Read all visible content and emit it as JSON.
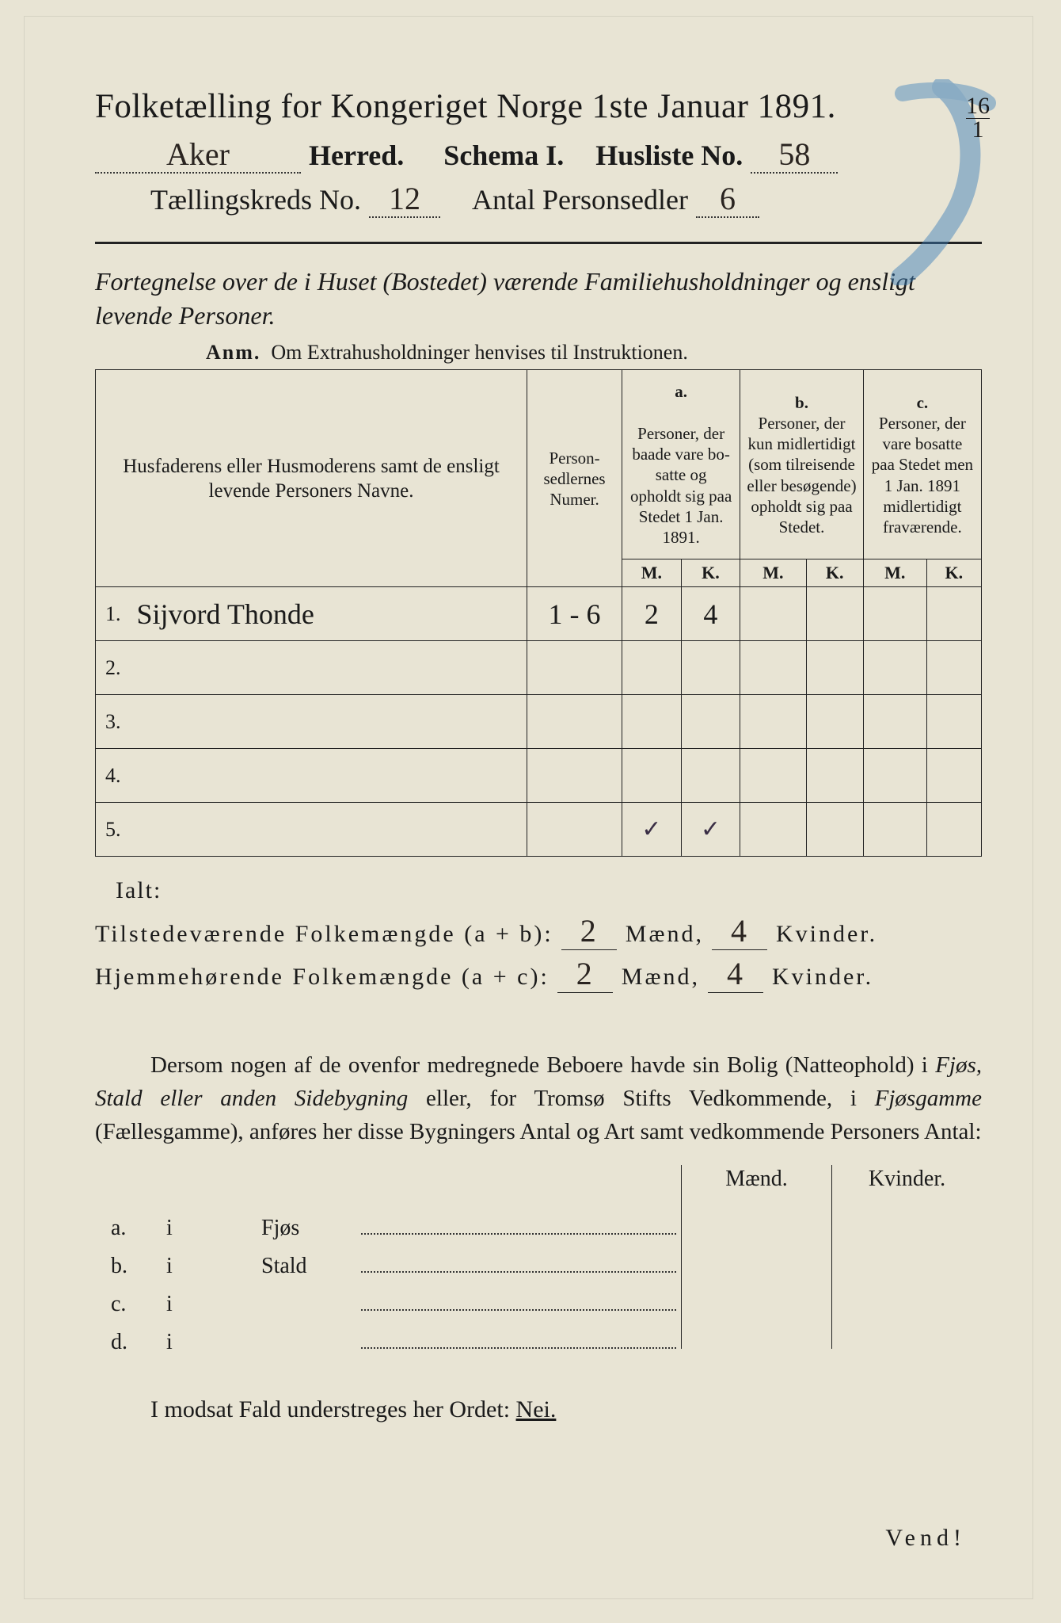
{
  "colors": {
    "paper": "#e8e4d4",
    "ink": "#1a1a1a",
    "blue_pencil": "#3a7db8",
    "handwriting": "#2a2420"
  },
  "header": {
    "title": "Folketælling for Kongeriget Norge 1ste Januar 1891.",
    "herred_hand": "Aker",
    "herred_label": "Herred.",
    "schema_label": "Schema I.",
    "husliste_label": "Husliste No.",
    "husliste_no_hand": "58",
    "corner_top": "16",
    "corner_bottom": "1",
    "kreds_label": "Tællingskreds No.",
    "kreds_no_hand": "12",
    "antal_label": "Antal Personsedler",
    "antal_hand": "6"
  },
  "intro": {
    "line": "Fortegnelse over de i Huset (Bostedet) værende Familiehusholdninger og ensligt levende Personer.",
    "anm_label": "Anm.",
    "anm_text": "Om Extrahusholdninger henvises til Instruktionen."
  },
  "table": {
    "col_names": "Husfaderens eller Husmode­rens samt de ensligt levende Personers Navne.",
    "col_numer": "Person­sedler­nes Numer.",
    "col_a_label": "a.",
    "col_a": "Personer, der baade vare bo­satte og opholdt sig paa Stedet 1 Jan. 1891.",
    "col_b_label": "b.",
    "col_b": "Personer, der kun midler­tidigt (som tilreisende eller besøgende) opholdt sig paa Stedet.",
    "col_c_label": "c.",
    "col_c": "Personer, der vare bosatte paa Stedet men 1 Jan. 1891 midler­tidigt fra­værende.",
    "sub_m": "M.",
    "sub_k": "K.",
    "rows": [
      {
        "n": "1.",
        "name": "Sijvord Thonde",
        "numer": "1 - 6",
        "a_m": "2",
        "a_k": "4",
        "b_m": "",
        "b_k": "",
        "c_m": "",
        "c_k": ""
      },
      {
        "n": "2.",
        "name": "",
        "numer": "",
        "a_m": "",
        "a_k": "",
        "b_m": "",
        "b_k": "",
        "c_m": "",
        "c_k": ""
      },
      {
        "n": "3.",
        "name": "",
        "numer": "",
        "a_m": "",
        "a_k": "",
        "b_m": "",
        "b_k": "",
        "c_m": "",
        "c_k": ""
      },
      {
        "n": "4.",
        "name": "",
        "numer": "",
        "a_m": "",
        "a_k": "",
        "b_m": "",
        "b_k": "",
        "c_m": "",
        "c_k": ""
      },
      {
        "n": "5.",
        "name": "",
        "numer": "",
        "a_m": "✓",
        "a_k": "✓",
        "b_m": "",
        "b_k": "",
        "c_m": "",
        "c_k": ""
      }
    ]
  },
  "totals": {
    "ialt": "Ialt:",
    "line1_label": "Tilstedeværende Folkemængde (a + b):",
    "line2_label": "Hjemmehørende Folkemængde (a + c):",
    "maend": "Mænd,",
    "kvinder": "Kvinder.",
    "l1_m": "2",
    "l1_k": "4",
    "l2_m": "2",
    "l2_k": "4"
  },
  "para": "Dersom nogen af de ovenfor medregnede Beboere havde sin Bolig (Natte­ophold) i Fjøs, Stald eller anden Sidebygning eller, for Tromsø Stifts Ved­kommende, i Fjøsgamme (Fællesgamme), anføres her disse Bygningers Antal og Art samt vedkommende Personers Antal:",
  "small": {
    "maend": "Mænd.",
    "kvinder": "Kvinder.",
    "rows": [
      {
        "a": "a.",
        "i": "i",
        "t": "Fjøs"
      },
      {
        "a": "b.",
        "i": "i",
        "t": "Stald"
      },
      {
        "a": "c.",
        "i": "i",
        "t": ""
      },
      {
        "a": "d.",
        "i": "i",
        "t": ""
      }
    ]
  },
  "bottom": "I modsat Fald understreges her Ordet: Nei.",
  "vend": "Vend!"
}
